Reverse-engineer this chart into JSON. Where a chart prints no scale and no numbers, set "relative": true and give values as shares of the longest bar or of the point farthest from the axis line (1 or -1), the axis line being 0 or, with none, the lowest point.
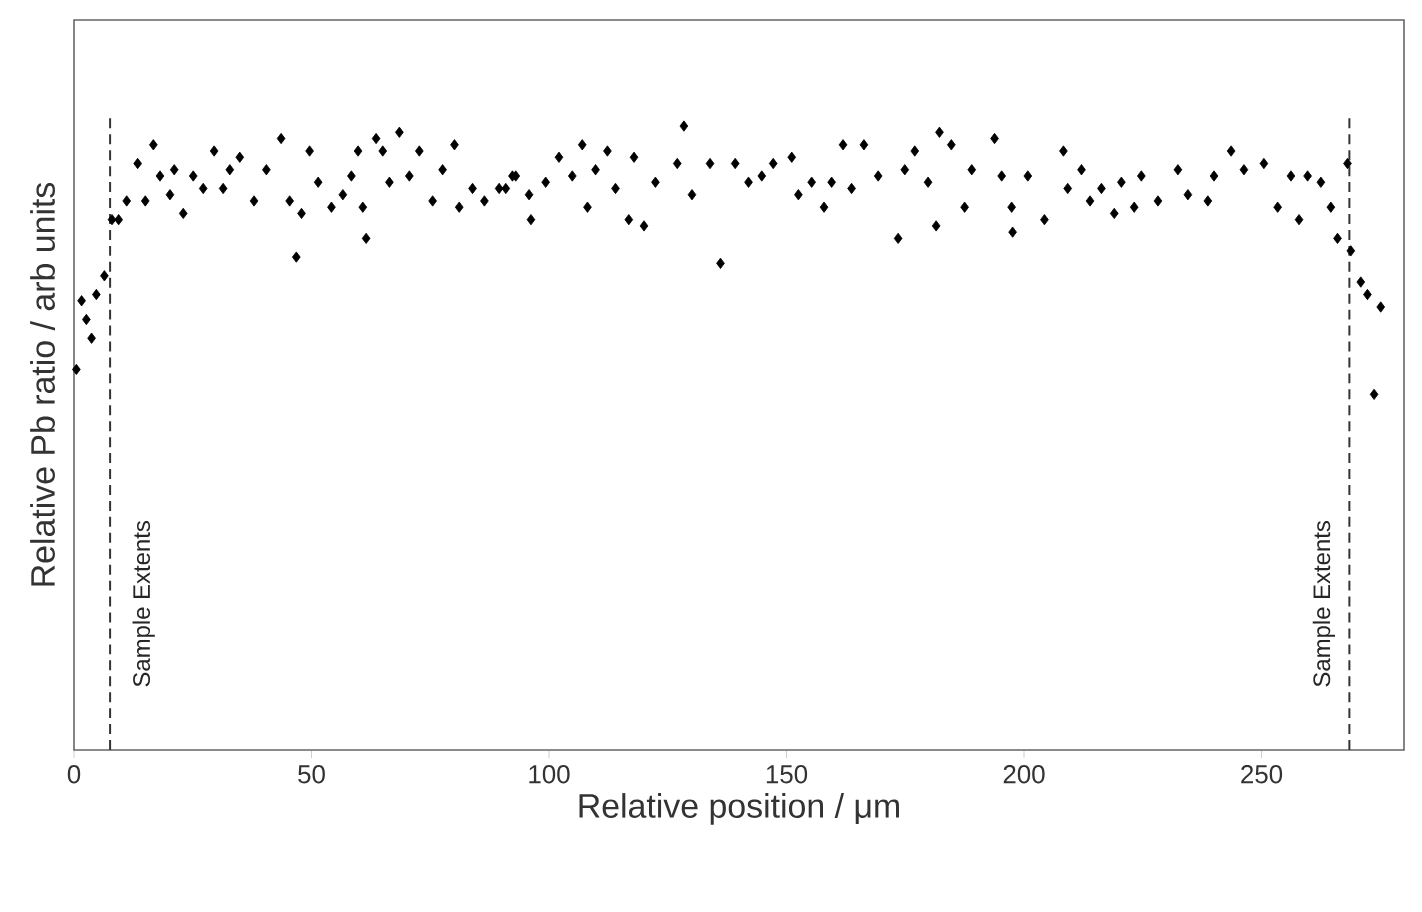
{
  "chart_data": {
    "type": "scatter",
    "relative": true,
    "xlabel": "Relative position / μm",
    "ylabel": "Relative Pb ratio / arb units",
    "xlim": [
      0,
      280
    ],
    "xticks": [
      0,
      50,
      100,
      150,
      200,
      250
    ],
    "marker": "diamond",
    "grid": false,
    "ref_lines": [
      {
        "axis": "x",
        "value": 7.6,
        "label": "Sample Extents",
        "color": "#333333",
        "line_style": "dashed"
      },
      {
        "axis": "x",
        "value": 268.5,
        "label": "Sample Extents",
        "color": "#333333",
        "line_style": "dashed"
      }
    ],
    "series": [
      {
        "color": "#000000",
        "x": [
          0.5,
          1.6,
          2.6,
          3.7,
          4.7,
          6.4,
          8.0,
          9.4,
          11.1,
          13.4,
          15.0,
          16.7,
          18.1,
          20.2,
          21.1,
          23.0,
          25.1,
          27.2,
          29.5,
          31.4,
          32.8,
          34.9,
          37.9,
          40.5,
          43.6,
          45.4,
          46.8,
          47.9,
          49.6,
          51.4,
          54.2,
          56.6,
          58.4,
          59.8,
          60.8,
          61.5,
          63.6,
          65.0,
          66.4,
          68.5,
          70.6,
          72.7,
          75.5,
          77.6,
          80.1,
          81.1,
          83.9,
          86.4,
          89.5,
          92.3,
          90.9,
          93.0,
          95.8,
          96.2,
          99.3,
          102.1,
          104.9,
          107.0,
          108.1,
          109.8,
          112.3,
          114.0,
          116.8,
          117.9,
          120.0,
          122.4,
          127.0,
          128.4,
          130.1,
          133.9,
          136.1,
          139.2,
          142.0,
          144.8,
          147.2,
          151.1,
          152.5,
          155.3,
          157.9,
          159.5,
          161.9,
          163.7,
          166.3,
          169.3,
          173.5,
          174.9,
          177.0,
          179.8,
          181.5,
          182.2,
          184.7,
          187.5,
          189.0,
          193.8,
          195.3,
          197.4,
          197.6,
          200.8,
          204.3,
          208.3,
          209.2,
          212.1,
          213.9,
          216.3,
          219.0,
          220.5,
          223.2,
          224.7,
          228.2,
          232.4,
          234.5,
          238.7,
          240.0,
          243.6,
          246.3,
          250.5,
          253.4,
          256.2,
          257.9,
          259.7,
          262.5,
          264.6,
          266.0,
          268.1,
          268.8,
          270.9,
          272.3,
          275.1,
          273.7
        ],
        "values": [
          0.61,
          0.72,
          0.69,
          0.66,
          0.73,
          0.76,
          0.85,
          0.85,
          0.88,
          0.94,
          0.88,
          0.97,
          0.92,
          0.89,
          0.93,
          0.86,
          0.92,
          0.9,
          0.96,
          0.9,
          0.93,
          0.95,
          0.88,
          0.93,
          0.98,
          0.88,
          0.79,
          0.86,
          0.96,
          0.91,
          0.87,
          0.89,
          0.92,
          0.96,
          0.87,
          0.82,
          0.98,
          0.96,
          0.91,
          0.99,
          0.92,
          0.96,
          0.88,
          0.93,
          0.97,
          0.87,
          0.9,
          0.88,
          0.9,
          0.92,
          0.9,
          0.92,
          0.89,
          0.85,
          0.91,
          0.95,
          0.92,
          0.97,
          0.87,
          0.93,
          0.96,
          0.9,
          0.85,
          0.95,
          0.84,
          0.91,
          0.94,
          1.0,
          0.89,
          0.94,
          0.78,
          0.94,
          0.91,
          0.92,
          0.94,
          0.95,
          0.89,
          0.91,
          0.87,
          0.91,
          0.97,
          0.9,
          0.97,
          0.92,
          0.82,
          0.93,
          0.96,
          0.91,
          0.84,
          0.99,
          0.97,
          0.87,
          0.93,
          0.98,
          0.92,
          0.87,
          0.83,
          0.92,
          0.85,
          0.96,
          0.9,
          0.93,
          0.88,
          0.9,
          0.86,
          0.91,
          0.87,
          0.92,
          0.88,
          0.93,
          0.89,
          0.88,
          0.92,
          0.96,
          0.93,
          0.94,
          0.87,
          0.92,
          0.85,
          0.92,
          0.91,
          0.87,
          0.82,
          0.94,
          0.8,
          0.75,
          0.73,
          0.71,
          0.57
        ]
      }
    ]
  }
}
